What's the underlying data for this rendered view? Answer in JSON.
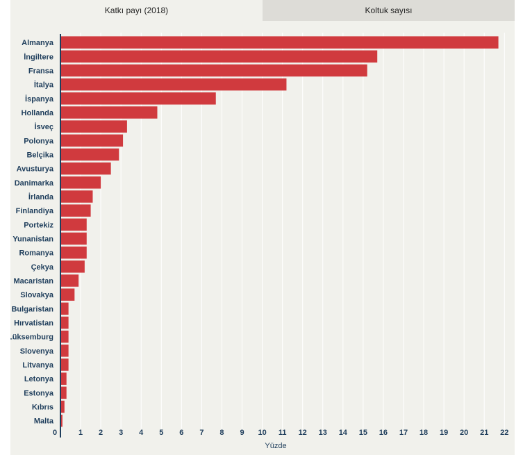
{
  "tabs": [
    {
      "label": "Katkı payı (2018)",
      "active": true
    },
    {
      "label": "Koltuk sayısı",
      "active": false
    }
  ],
  "colors": {
    "bar": "#d03a3e",
    "axis": "#1f3e5c",
    "label": "#1f3e5c",
    "grid": "#ffffff",
    "panel": "#f1f1ec"
  },
  "chart_data": {
    "type": "bar",
    "orientation": "horizontal",
    "categories": [
      "Almanya",
      "İngiltere",
      "Fransa",
      "İtalya",
      "İspanya",
      "Hollanda",
      "İsveç",
      "Polonya",
      "Belçika",
      "Avusturya",
      "Danimarka",
      "İrlanda",
      "Finlandiya",
      "Portekiz",
      "Yunanistan",
      "Romanya",
      "Çekya",
      "Macaristan",
      "Slovakya",
      "Bulgaristan",
      "Hırvatistan",
      "Lüksemburg",
      "Slovenya",
      "Litvanya",
      "Letonya",
      "Estonya",
      "Kıbrıs",
      "Malta"
    ],
    "values": [
      21.7,
      15.7,
      15.2,
      11.2,
      7.7,
      4.8,
      3.3,
      3.1,
      2.9,
      2.5,
      2.0,
      1.6,
      1.5,
      1.3,
      1.3,
      1.3,
      1.2,
      0.9,
      0.7,
      0.4,
      0.4,
      0.4,
      0.4,
      0.4,
      0.3,
      0.3,
      0.2,
      0.1
    ],
    "xticks": [
      0,
      1,
      2,
      3,
      4,
      5,
      6,
      7,
      8,
      9,
      10,
      11,
      12,
      13,
      14,
      15,
      16,
      17,
      18,
      19,
      20,
      21,
      22
    ],
    "xlim": [
      0,
      22.3
    ],
    "xlabel": "Yüzde",
    "ylabel": "",
    "title": "",
    "grid": true
  }
}
